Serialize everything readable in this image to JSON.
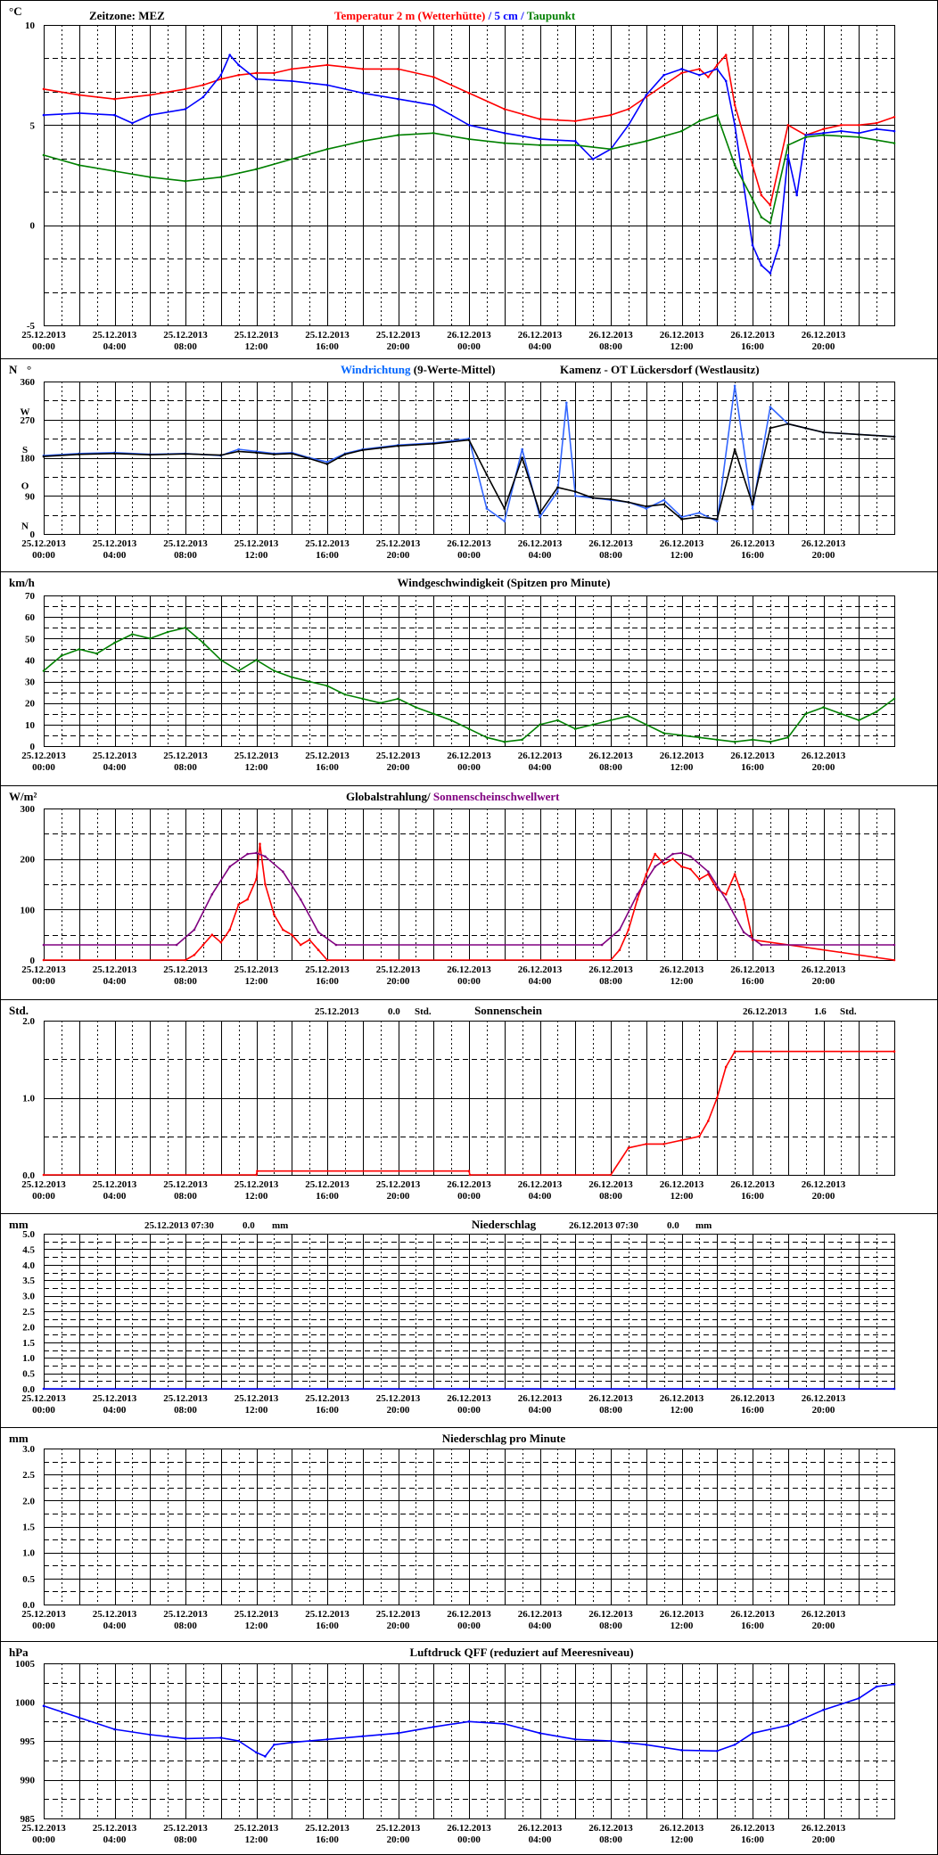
{
  "x_axis": {
    "ticks": [
      {
        "date": "25.12.2013",
        "time": "00:00"
      },
      {
        "date": "25.12.2013",
        "time": "04:00"
      },
      {
        "date": "25.12.2013",
        "time": "08:00"
      },
      {
        "date": "25.12.2013",
        "time": "12:00"
      },
      {
        "date": "25.12.2013",
        "time": "16:00"
      },
      {
        "date": "25.12.2013",
        "time": "20:00"
      },
      {
        "date": "26.12.2013",
        "time": "00:00"
      },
      {
        "date": "26.12.2013",
        "time": "04:00"
      },
      {
        "date": "26.12.2013",
        "time": "08:00"
      },
      {
        "date": "26.12.2013",
        "time": "12:00"
      },
      {
        "date": "26.12.2013",
        "time": "16:00"
      },
      {
        "date": "26.12.2013",
        "time": "20:00"
      }
    ],
    "range_hours": [
      0,
      48
    ]
  },
  "chart_data": [
    {
      "id": "temperature",
      "type": "line",
      "unit": "°C",
      "timezone_label": "Zeitzone: MEZ",
      "title_parts": [
        {
          "text": "Temperatur 2 m (Wetterhütte)",
          "color": "#ff0000"
        },
        {
          "text": "  /  ",
          "color": "#0000ff"
        },
        {
          "text": "5 cm",
          "color": "#0000ff"
        },
        {
          "text": " / ",
          "color": "#0000ff"
        },
        {
          "text": "Taupunkt",
          "color": "#008000"
        }
      ],
      "ylim": [
        -5,
        10
      ],
      "yticks": [
        "-5",
        "0",
        "5",
        "10"
      ],
      "ytick_values": [
        -5,
        0,
        5,
        10
      ],
      "series": [
        {
          "name": "Temperatur 2 m (Wetterhütte)",
          "color": "#ff0000",
          "x": [
            0,
            2,
            4,
            6,
            8,
            9,
            10,
            11,
            12,
            13,
            14,
            16,
            18,
            20,
            22,
            24,
            26,
            28,
            30,
            32,
            33,
            34,
            35,
            36,
            37,
            37.5,
            38,
            38.5,
            39,
            40,
            40.5,
            41,
            42,
            43,
            44,
            45,
            46,
            47,
            48
          ],
          "values": [
            6.8,
            6.5,
            6.3,
            6.5,
            6.8,
            7.0,
            7.3,
            7.5,
            7.6,
            7.6,
            7.8,
            8.0,
            7.8,
            7.8,
            7.4,
            6.6,
            5.8,
            5.3,
            5.2,
            5.5,
            5.8,
            6.4,
            7.0,
            7.6,
            7.8,
            7.4,
            8.0,
            8.5,
            6.0,
            3.0,
            1.5,
            1.0,
            5.0,
            4.5,
            4.8,
            5.0,
            5.0,
            5.1,
            5.4
          ]
        },
        {
          "name": "5 cm",
          "color": "#0000ff",
          "x": [
            0,
            2,
            4,
            5,
            6,
            8,
            9,
            10,
            10.5,
            11,
            12,
            14,
            16,
            18,
            20,
            22,
            24,
            26,
            28,
            30,
            31,
            32,
            33,
            34,
            35,
            36,
            37,
            38,
            38.5,
            39,
            40,
            40.5,
            41,
            41.5,
            42,
            42.5,
            43,
            44,
            45,
            46,
            47,
            48
          ],
          "values": [
            5.5,
            5.6,
            5.5,
            5.1,
            5.5,
            5.8,
            6.4,
            7.5,
            8.5,
            8.0,
            7.3,
            7.2,
            7.0,
            6.6,
            6.3,
            6.0,
            5.0,
            4.6,
            4.3,
            4.2,
            3.3,
            3.8,
            5.0,
            6.5,
            7.5,
            7.8,
            7.5,
            7.8,
            7.2,
            5.0,
            -1.0,
            -2.0,
            -2.4,
            -1.0,
            3.5,
            1.5,
            4.5,
            4.6,
            4.7,
            4.6,
            4.8,
            4.7
          ]
        },
        {
          "name": "Taupunkt",
          "color": "#008000",
          "x": [
            0,
            2,
            4,
            6,
            8,
            10,
            12,
            14,
            16,
            18,
            20,
            22,
            24,
            26,
            28,
            30,
            32,
            34,
            36,
            37,
            38,
            39,
            40,
            40.5,
            41,
            42,
            43,
            44,
            46,
            48
          ],
          "values": [
            3.5,
            3.0,
            2.7,
            2.4,
            2.2,
            2.4,
            2.8,
            3.3,
            3.8,
            4.2,
            4.5,
            4.6,
            4.3,
            4.1,
            4.0,
            4.0,
            3.8,
            4.2,
            4.7,
            5.2,
            5.5,
            3.0,
            1.3,
            0.4,
            0.1,
            4.0,
            4.4,
            4.5,
            4.4,
            4.1
          ]
        }
      ]
    },
    {
      "id": "wind_direction",
      "type": "line",
      "unit": "N",
      "unit_mark": "°",
      "title_parts": [
        {
          "text": "Windrichtung",
          "color": "#0066ff"
        },
        {
          "text": " (9-Werte-Mittel)",
          "color": "#000000"
        }
      ],
      "station": "Kamenz - OT Lückersdorf (Westlausitz)",
      "ylim": [
        0,
        360
      ],
      "yticks": [
        "0",
        "90",
        "180",
        "270",
        "360"
      ],
      "ytick_values": [
        0,
        90,
        180,
        270,
        360
      ],
      "compass": [
        "N",
        "O",
        "S",
        "W"
      ],
      "compass_values": [
        20,
        115,
        200,
        290
      ],
      "series": [
        {
          "name": "Windrichtung",
          "color": "#3366ff",
          "x": [
            0,
            2,
            4,
            6,
            8,
            10,
            11,
            12,
            13,
            14,
            15,
            16,
            17,
            18,
            20,
            22,
            24,
            25,
            26,
            27,
            28,
            29,
            29.5,
            30,
            31,
            32,
            33,
            34,
            35,
            36,
            37,
            38,
            39,
            40,
            41,
            42,
            43,
            44,
            46,
            48
          ],
          "values": [
            185,
            190,
            192,
            188,
            190,
            185,
            200,
            195,
            190,
            192,
            180,
            170,
            190,
            200,
            210,
            215,
            225,
            60,
            30,
            200,
            40,
            100,
            310,
            90,
            85,
            80,
            75,
            60,
            80,
            40,
            50,
            30,
            350,
            60,
            300,
            260,
            250,
            240,
            235,
            230
          ]
        },
        {
          "name": "9-Werte-Mittel",
          "color": "#000000",
          "x": [
            0,
            2,
            4,
            6,
            8,
            10,
            11,
            12,
            13,
            14,
            15,
            16,
            17,
            18,
            20,
            22,
            24,
            25,
            26,
            27,
            28,
            29,
            30,
            31,
            32,
            33,
            34,
            35,
            36,
            37,
            38,
            39,
            40,
            41,
            42,
            43,
            44,
            46,
            48
          ],
          "values": [
            183,
            188,
            190,
            187,
            189,
            186,
            195,
            192,
            188,
            190,
            178,
            165,
            188,
            198,
            208,
            213,
            222,
            140,
            60,
            180,
            50,
            110,
            100,
            85,
            82,
            75,
            65,
            70,
            35,
            40,
            35,
            200,
            70,
            250,
            260,
            250,
            240,
            235,
            230
          ]
        }
      ]
    },
    {
      "id": "wind_speed",
      "type": "line",
      "unit": "km/h",
      "title": "Windgeschwindigkeit (Spitzen pro Minute)",
      "ylim": [
        0,
        70
      ],
      "yticks": [
        "0",
        "10",
        "20",
        "30",
        "40",
        "50",
        "60",
        "70"
      ],
      "ytick_values": [
        0,
        10,
        20,
        30,
        40,
        50,
        60,
        70
      ],
      "series": [
        {
          "name": "Windgeschwindigkeit",
          "color": "#008000",
          "x": [
            0,
            1,
            2,
            3,
            4,
            5,
            6,
            7,
            8,
            9,
            10,
            11,
            12,
            13,
            14,
            15,
            16,
            17,
            18,
            19,
            20,
            21,
            22,
            23,
            24,
            25,
            26,
            27,
            28,
            29,
            30,
            31,
            32,
            33,
            34,
            35,
            36,
            37,
            38,
            39,
            40,
            41,
            42,
            43,
            44,
            45,
            46,
            47,
            48
          ],
          "values": [
            35,
            42,
            45,
            43,
            48,
            52,
            50,
            53,
            55,
            48,
            40,
            35,
            40,
            35,
            32,
            30,
            28,
            24,
            22,
            20,
            22,
            18,
            15,
            12,
            8,
            4,
            2,
            3,
            10,
            12,
            8,
            10,
            12,
            14,
            10,
            6,
            5,
            4,
            3,
            2,
            3,
            2,
            4,
            15,
            18,
            15,
            12,
            16,
            22
          ]
        }
      ]
    },
    {
      "id": "radiation",
      "type": "line",
      "unit": "W/m²",
      "title_parts": [
        {
          "text": "Globalstrahlung/ ",
          "color": "#000000"
        },
        {
          "text": "Sonnenscheinschwellwert",
          "color": "#800080"
        }
      ],
      "ylim": [
        0,
        300
      ],
      "yticks": [
        "0",
        "100",
        "200",
        "300"
      ],
      "ytick_values": [
        0,
        100,
        200,
        300
      ],
      "series": [
        {
          "name": "Globalstrahlung",
          "color": "#ff0000",
          "x": [
            0,
            8,
            8.5,
            9,
            9.5,
            10,
            10.5,
            11,
            11.5,
            12,
            12.2,
            12.5,
            13,
            13.5,
            14,
            14.5,
            15,
            15.5,
            16,
            32,
            32.5,
            33,
            33.5,
            34,
            34.5,
            35,
            35.5,
            36,
            36.5,
            37,
            37.5,
            38,
            38.5,
            39,
            39.5,
            40,
            48
          ],
          "values": [
            0,
            0,
            10,
            30,
            50,
            35,
            60,
            110,
            120,
            160,
            230,
            150,
            90,
            60,
            50,
            30,
            40,
            20,
            0,
            0,
            20,
            60,
            120,
            170,
            210,
            190,
            200,
            185,
            180,
            160,
            170,
            140,
            130,
            170,
            120,
            40,
            0
          ]
        },
        {
          "name": "Sonnenscheinschwellwert",
          "color": "#800080",
          "x": [
            0,
            7.5,
            8.5,
            9.5,
            10.5,
            11.5,
            12,
            12.5,
            13.5,
            14.5,
            15.5,
            16.5,
            31.5,
            32.5,
            33.5,
            34.5,
            35.5,
            36,
            36.5,
            37.5,
            38.5,
            39.5,
            40.5,
            48
          ],
          "values": [
            30,
            30,
            60,
            130,
            185,
            210,
            212,
            205,
            175,
            120,
            55,
            30,
            30,
            60,
            130,
            185,
            210,
            212,
            205,
            175,
            120,
            55,
            30,
            30
          ]
        }
      ]
    },
    {
      "id": "sunshine",
      "type": "line",
      "unit": "Std.",
      "title": "Sonnenschein",
      "day_totals": [
        {
          "date": "25.12.2013",
          "value": "0.0",
          "unit": "Std."
        },
        {
          "date": "26.12.2013",
          "value": "1.6",
          "unit": "Std."
        }
      ],
      "ylim": [
        0,
        2
      ],
      "yticks": [
        "0.0",
        "1.0",
        "2.0"
      ],
      "ytick_values": [
        0,
        1,
        2
      ],
      "series": [
        {
          "name": "Sonnenschein",
          "color": "#ff0000",
          "x": [
            0,
            12,
            12.05,
            24,
            24.05,
            32,
            33,
            34,
            35,
            36,
            37,
            37.5,
            38,
            38.5,
            39,
            40,
            48
          ],
          "values": [
            0,
            0,
            0.05,
            0.05,
            0,
            0,
            0.35,
            0.4,
            0.4,
            0.45,
            0.5,
            0.7,
            1.0,
            1.4,
            1.6,
            1.6,
            1.6
          ]
        }
      ]
    },
    {
      "id": "precipitation",
      "type": "line",
      "unit": "mm",
      "title": "Niederschlag",
      "day_totals": [
        {
          "date": "25.12.2013 07:30",
          "value": "0.0",
          "unit": "mm"
        },
        {
          "date": "26.12.2013 07:30",
          "value": "0.0",
          "unit": "mm"
        }
      ],
      "ylim": [
        0,
        5
      ],
      "yticks": [
        "0.0",
        "0.5",
        "1.0",
        "1.5",
        "2.0",
        "2.5",
        "3.0",
        "3.5",
        "4.0",
        "4.5",
        "5.0"
      ],
      "ytick_values": [
        0,
        0.5,
        1,
        1.5,
        2,
        2.5,
        3,
        3.5,
        4,
        4.5,
        5
      ],
      "series": [
        {
          "name": "Niederschlag",
          "color": "#0000ff",
          "x": [
            0,
            48
          ],
          "values": [
            0,
            0
          ]
        }
      ]
    },
    {
      "id": "precipitation_per_minute",
      "type": "line",
      "unit": "mm",
      "title": "Niederschlag pro Minute",
      "ylim": [
        0,
        3
      ],
      "yticks": [
        "0.0",
        "0.5",
        "1.0",
        "1.5",
        "2.0",
        "2.5",
        "3.0"
      ],
      "ytick_values": [
        0,
        0.5,
        1,
        1.5,
        2,
        2.5,
        3
      ],
      "series": []
    },
    {
      "id": "pressure",
      "type": "line",
      "unit": "hPa",
      "title": "Luftdruck QFF (reduziert auf Meeresniveau)",
      "ylim": [
        985,
        1005
      ],
      "yticks": [
        "985",
        "990",
        "995",
        "1000",
        "1005"
      ],
      "ytick_values": [
        985,
        990,
        995,
        1000,
        1005
      ],
      "series": [
        {
          "name": "Luftdruck QFF",
          "color": "#0000ff",
          "x": [
            0,
            2,
            4,
            6,
            8,
            10,
            11,
            12,
            12.5,
            13,
            14,
            16,
            18,
            20,
            22,
            24,
            26,
            28,
            30,
            32,
            34,
            36,
            38,
            39,
            40,
            42,
            44,
            46,
            47,
            48
          ],
          "values": [
            999.5,
            998.0,
            996.5,
            995.8,
            995.3,
            995.4,
            995.0,
            993.5,
            993.0,
            994.5,
            994.8,
            995.2,
            995.6,
            996.0,
            996.8,
            997.5,
            997.2,
            996.0,
            995.2,
            995.0,
            994.5,
            993.8,
            993.7,
            994.5,
            996.0,
            997.0,
            999.0,
            1000.5,
            1002.0,
            1002.3
          ]
        }
      ]
    }
  ]
}
